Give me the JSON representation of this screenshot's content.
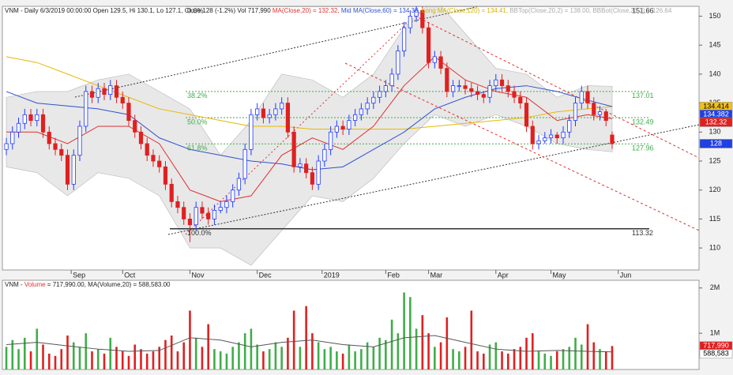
{
  "chart_data": {
    "type": "candlestick",
    "header": [
      {
        "text": "VNM - Daily 6/3/2019 00:00:00 Open 129.5, Hi 130.1, Lo 127.1, Close 128 (-1.2%) Vol 717,990 ",
        "color": "#222222"
      },
      {
        "text": "MA(Close,20) = 132.32, ",
        "color": "#e03030"
      },
      {
        "text": "Mid MA(Close,60) = 134.38, ",
        "color": "#3050d0"
      },
      {
        "text": "Long MA(Close,120) = 134.41, ",
        "color": "#d4b000"
      },
      {
        "text": "BBTop(Close,20,2) = 138.00, ",
        "color": "#aaaaaa"
      },
      {
        "text": "BBBot(Close,20,2) = 126.64",
        "color": "#aaaaaa"
      }
    ],
    "up_color": "#1f3bff",
    "down_color": "#e02020",
    "xlim": [
      -0.65,
      113.2
    ],
    "xticks": [
      {
        "value": 10.6,
        "label": "Sep"
      },
      {
        "value": 19,
        "label": "Oct"
      },
      {
        "value": 30,
        "label": "Nov"
      },
      {
        "value": 41,
        "label": "Dec"
      },
      {
        "value": 51.6,
        "label": "2019"
      },
      {
        "value": 62,
        "label": "Feb"
      },
      {
        "value": 69,
        "label": "Mar"
      },
      {
        "value": 80,
        "label": "Apr"
      },
      {
        "value": 89,
        "label": "May"
      },
      {
        "value": 100,
        "label": "Jun"
      }
    ],
    "ylim": [
      106.2,
      151.7
    ],
    "yticks": [
      110,
      115,
      120,
      125,
      130,
      135,
      140,
      145,
      150
    ],
    "ohlc": [
      [
        127,
        129,
        126,
        128
      ],
      [
        128,
        131,
        127,
        130
      ],
      [
        130,
        132.5,
        129,
        131.5
      ],
      [
        131.5,
        134,
        130.5,
        133
      ],
      [
        133,
        134,
        131,
        132
      ],
      [
        132,
        134,
        131,
        133
      ],
      [
        133,
        134,
        129,
        130
      ],
      [
        130,
        131,
        127,
        128
      ],
      [
        128,
        129,
        126,
        127
      ],
      [
        127,
        128,
        125,
        126
      ],
      [
        126,
        127,
        120,
        121
      ],
      [
        121,
        127,
        120,
        126
      ],
      [
        126,
        132,
        125,
        131
      ],
      [
        131,
        138,
        130,
        137
      ],
      [
        137,
        138,
        135,
        136
      ],
      [
        136,
        138.5,
        135,
        137.5
      ],
      [
        137.5,
        138.5,
        135.5,
        136.5
      ],
      [
        136.5,
        139,
        135.5,
        138
      ],
      [
        138,
        139,
        135,
        136
      ],
      [
        136,
        137,
        134,
        135
      ],
      [
        135,
        136,
        131,
        132
      ],
      [
        132,
        133,
        129,
        130
      ],
      [
        130,
        131,
        127,
        128
      ],
      [
        128,
        129,
        125,
        126
      ],
      [
        126,
        127,
        124,
        125
      ],
      [
        125,
        126,
        123,
        124
      ],
      [
        124,
        125,
        120,
        121
      ],
      [
        121,
        122,
        117,
        118
      ],
      [
        118,
        119,
        116,
        117
      ],
      [
        117,
        118,
        114,
        115
      ],
      [
        115,
        116,
        111,
        114
      ],
      [
        114,
        118,
        113,
        117
      ],
      [
        117,
        118,
        115,
        116
      ],
      [
        116,
        117,
        114,
        115
      ],
      [
        115,
        117.5,
        114,
        116.5
      ],
      [
        116.5,
        118,
        116,
        117
      ],
      [
        117,
        119,
        116,
        118
      ],
      [
        118,
        121,
        117,
        120
      ],
      [
        120,
        123,
        119,
        122
      ],
      [
        122,
        128,
        121,
        127
      ],
      [
        127,
        134,
        126,
        133
      ],
      [
        133,
        135,
        132,
        134
      ],
      [
        134,
        135,
        131.5,
        132.5
      ],
      [
        132.5,
        134,
        131.5,
        133
      ],
      [
        133,
        135,
        132,
        134
      ],
      [
        134,
        136,
        133,
        135
      ],
      [
        135,
        136,
        129,
        130
      ],
      [
        130,
        131,
        123,
        124
      ],
      [
        124,
        125.5,
        123,
        124.5
      ],
      [
        124.5,
        125.5,
        122,
        123
      ],
      [
        123,
        124,
        120,
        121
      ],
      [
        121,
        126,
        120,
        125
      ],
      [
        125,
        128,
        124,
        127
      ],
      [
        127,
        131,
        126,
        130
      ],
      [
        130,
        132,
        129,
        131
      ],
      [
        131,
        132,
        129.5,
        130.5
      ],
      [
        130.5,
        133,
        129.5,
        132
      ],
      [
        132,
        134,
        131,
        133
      ],
      [
        133,
        135,
        132,
        134
      ],
      [
        134,
        136,
        133,
        135
      ],
      [
        135,
        137,
        134,
        136
      ],
      [
        136,
        138,
        135,
        137
      ],
      [
        137,
        139,
        136,
        138
      ],
      [
        138,
        141,
        137,
        140
      ],
      [
        140,
        145,
        139,
        144
      ],
      [
        144,
        149,
        143,
        148
      ],
      [
        148,
        151,
        147,
        150
      ],
      [
        150,
        152,
        149,
        151
      ],
      [
        151,
        152,
        147,
        148
      ],
      [
        148,
        149,
        141,
        142
      ],
      [
        142,
        144,
        141,
        143
      ],
      [
        143,
        144,
        140,
        141
      ],
      [
        141,
        142,
        136,
        137
      ],
      [
        137,
        139,
        136,
        138
      ],
      [
        138,
        139,
        137,
        138
      ],
      [
        138,
        139,
        136.5,
        137.5
      ],
      [
        137.5,
        138.5,
        136,
        137
      ],
      [
        137,
        138,
        135.5,
        136.5
      ],
      [
        136.5,
        137,
        135,
        136
      ],
      [
        136,
        139,
        135,
        138
      ],
      [
        138,
        140,
        137,
        139
      ],
      [
        139,
        140,
        137,
        138
      ],
      [
        138,
        139,
        136,
        137
      ],
      [
        137,
        138,
        135,
        136
      ],
      [
        136,
        137,
        134,
        135
      ],
      [
        135,
        136,
        130,
        131
      ],
      [
        131,
        132,
        127,
        128
      ],
      [
        128,
        129.5,
        127,
        128.5
      ],
      [
        128.5,
        130,
        128,
        129
      ],
      [
        129,
        130.5,
        128,
        129.5
      ],
      [
        129.5,
        130,
        128,
        129
      ],
      [
        129,
        131,
        128,
        130
      ],
      [
        130,
        133,
        129,
        132
      ],
      [
        132,
        136,
        131,
        135
      ],
      [
        135,
        138,
        134,
        137
      ],
      [
        137,
        138,
        134,
        135
      ],
      [
        135,
        136,
        132,
        133
      ],
      [
        133,
        134.5,
        132,
        133.5
      ],
      [
        133.5,
        134,
        131,
        132
      ],
      [
        129.5,
        130.1,
        127.1,
        128
      ]
    ],
    "overlay_x": [
      0,
      5,
      10,
      15,
      20,
      25,
      30,
      35,
      40,
      45,
      50,
      55,
      60,
      65,
      70,
      75,
      80,
      85,
      90,
      95,
      99
    ],
    "band": {
      "color": "#b0b0b0",
      "top": [
        136,
        137,
        137,
        139,
        140,
        137,
        134,
        126,
        132,
        140,
        139,
        136,
        140,
        148,
        153,
        147,
        141,
        140,
        136,
        138,
        137.9
      ],
      "bottom": [
        124,
        123,
        119,
        123,
        122,
        119,
        110,
        110,
        107,
        113,
        119,
        118,
        122,
        128,
        133,
        131,
        133,
        131,
        128,
        127,
        126.6
      ]
    },
    "overlays": [
      {
        "color": "#e8b800",
        "values": [
          143,
          142,
          140,
          138,
          136,
          134,
          133,
          132,
          131,
          131,
          130.5,
          130.5,
          130.5,
          130.5,
          131,
          131.5,
          132,
          132.5,
          133.5,
          134,
          134.4
        ]
      },
      {
        "color": "#3050d0",
        "values": [
          137,
          135,
          134.5,
          134,
          133,
          129,
          127,
          126,
          125,
          124.5,
          123.5,
          124,
          127,
          130,
          134,
          136,
          137.5,
          138,
          137,
          135.5,
          134.4
        ]
      },
      {
        "color": "#e03030",
        "values": [
          130,
          130,
          128,
          131,
          131,
          128,
          120,
          118,
          119,
          126,
          129,
          127,
          131,
          138,
          143,
          139,
          137,
          136,
          132,
          133,
          132.3
        ]
      }
    ],
    "fib": [
      {
        "level": "0.0%",
        "value": 151.66,
        "value_label": "151.66",
        "color": "#999999"
      },
      {
        "level": "38.2%",
        "value": 137.01,
        "value_label": "137.01",
        "color": "#3fae49"
      },
      {
        "level": "50.0%",
        "value": 132.49,
        "value_label": "132.49",
        "color": "#3fae49"
      },
      {
        "level": "61.8%",
        "value": 127.96,
        "value_label": "127.96",
        "color": "#3fae49"
      },
      {
        "level": "100.0%",
        "value": 113.32,
        "value_label": "113.32",
        "color": "#333333"
      }
    ],
    "price_tags": [
      {
        "value": 134.414,
        "label": "134.414",
        "color": "#f0c020",
        "text_color": "#000000"
      },
      {
        "value": 134.382,
        "label": "134.382",
        "color": "#2040e0",
        "text_color": "#ffffff"
      },
      {
        "value": 132.32,
        "label": "132.32",
        "color": "#e02020",
        "text_color": "#ffffff"
      },
      {
        "value": 128,
        "label": "128",
        "color": "#2040e0",
        "text_color": "#ffffff"
      }
    ],
    "volume": {
      "header": [
        {
          "text": "VNM - ",
          "color": "#222222"
        },
        {
          "text": "Volume",
          "color": "#e03030"
        },
        {
          "text": " = 717,990.00, MA(Volume,20) = 588,583.00",
          "color": "#222222"
        }
      ],
      "up_color": "#3fae49",
      "down_color": "#e02020",
      "ma_color": "#555555",
      "ylim": [
        200000,
        2170000
      ],
      "yticks": [
        {
          "value": 2000000,
          "label": "2M"
        },
        {
          "value": 1000000,
          "label": "1M"
        }
      ],
      "values": [
        700000,
        850000,
        650000,
        900000,
        600000,
        1100000,
        750000,
        550000,
        500000,
        650000,
        950000,
        800000,
        700000,
        1000000,
        600000,
        650000,
        550000,
        900000,
        700000,
        600000,
        500000,
        750000,
        650000,
        550000,
        600000,
        700000,
        850000,
        950000,
        600000,
        800000,
        1500000,
        900000,
        700000,
        1200000,
        650000,
        600000,
        550000,
        700000,
        800000,
        1000000,
        1100000,
        750000,
        600000,
        650000,
        800000,
        700000,
        900000,
        1500000,
        700000,
        1600000,
        1000000,
        800000,
        650000,
        700000,
        600000,
        550000,
        750000,
        600000,
        650000,
        800000,
        700000,
        900000,
        850000,
        1300000,
        1000000,
        1900000,
        1800000,
        1100000,
        1400000,
        1000000,
        700000,
        800000,
        1350000,
        650000,
        600000,
        700000,
        1500000,
        600000,
        550000,
        750000,
        800000,
        600000,
        550000,
        650000,
        700000,
        900000,
        1000000,
        600000,
        550000,
        500000,
        600000,
        650000,
        700000,
        900000,
        750000,
        1200000,
        800000,
        650000,
        600000,
        717990
      ],
      "ma": [
        750000,
        800000,
        720000,
        650000,
        600000,
        620000,
        900000,
        850000,
        700000,
        800000,
        850000,
        750000,
        700000,
        900000,
        950000,
        800000,
        650000,
        600000,
        620000,
        600000,
        588583
      ],
      "tags": [
        {
          "value": 717990,
          "label": "717,990",
          "color": "#e02020",
          "text_color": "#ffffff"
        },
        {
          "value": 588583,
          "label": "588,583",
          "color": "#ffffff",
          "text_color": "#000000"
        }
      ]
    }
  }
}
